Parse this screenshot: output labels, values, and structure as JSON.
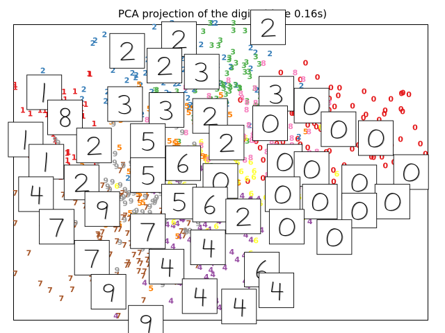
{
  "chart_data": {
    "type": "scatter",
    "title": "PCA projection of the digits (time 0.16s)",
    "xlabel": "",
    "ylabel": "",
    "xlim": [
      -1,
      1
    ],
    "ylim": [
      -1,
      1
    ],
    "show_ticks": false,
    "grid": false,
    "marker": "digit-label",
    "classes": [
      {
        "digit": "0",
        "color": "#e41a1c"
      },
      {
        "digit": "1",
        "color": "#e41a1c"
      },
      {
        "digit": "2",
        "color": "#377eb8"
      },
      {
        "digit": "3",
        "color": "#4daf4a"
      },
      {
        "digit": "4",
        "color": "#984ea3"
      },
      {
        "digit": "5",
        "color": "#ff7f00"
      },
      {
        "digit": "6",
        "color": "#ffff33"
      },
      {
        "digit": "7",
        "color": "#a65628"
      },
      {
        "digit": "8",
        "color": "#f781bf"
      },
      {
        "digit": "9",
        "color": "#999999"
      }
    ],
    "clusters": [
      {
        "digit": "0",
        "cx": 0.55,
        "cy": 0.22,
        "sx": 0.22,
        "sy": 0.2,
        "n": 120
      },
      {
        "digit": "1",
        "cx": -0.78,
        "cy": 0.32,
        "sx": 0.1,
        "sy": 0.22,
        "n": 70
      },
      {
        "digit": "2",
        "cx": -0.22,
        "cy": 0.62,
        "sx": 0.22,
        "sy": 0.2,
        "n": 90
      },
      {
        "digit": "3",
        "cx": 0.02,
        "cy": 0.55,
        "sx": 0.16,
        "sy": 0.2,
        "n": 90
      },
      {
        "digit": "4",
        "cx": -0.05,
        "cy": -0.52,
        "sx": 0.2,
        "sy": 0.25,
        "n": 90
      },
      {
        "digit": "5",
        "cx": -0.22,
        "cy": 0.08,
        "sx": 0.2,
        "sy": 0.22,
        "n": 90
      },
      {
        "digit": "6",
        "cx": 0.0,
        "cy": -0.12,
        "sx": 0.24,
        "sy": 0.2,
        "n": 100
      },
      {
        "digit": "7",
        "cx": -0.45,
        "cy": -0.42,
        "sx": 0.22,
        "sy": 0.24,
        "n": 100
      },
      {
        "digit": "8",
        "cx": 0.08,
        "cy": 0.25,
        "sx": 0.2,
        "sy": 0.2,
        "n": 90
      },
      {
        "digit": "9",
        "cx": -0.38,
        "cy": -0.15,
        "sx": 0.2,
        "sy": 0.24,
        "n": 100
      }
    ],
    "thumbnails": [
      {
        "digit": "2",
        "x": 0.23,
        "y": 0.98
      },
      {
        "digit": "2",
        "x": -0.2,
        "y": 0.9
      },
      {
        "digit": "2",
        "x": -0.45,
        "y": 0.82
      },
      {
        "digit": "2",
        "x": -0.27,
        "y": 0.72
      },
      {
        "digit": "3",
        "x": -0.09,
        "y": 0.68
      },
      {
        "digit": "3",
        "x": 0.27,
        "y": 0.53
      },
      {
        "digit": "1",
        "x": -0.85,
        "y": 0.54
      },
      {
        "digit": "3",
        "x": -0.46,
        "y": 0.46
      },
      {
        "digit": "3",
        "x": -0.26,
        "y": 0.42
      },
      {
        "digit": "2",
        "x": -0.05,
        "y": 0.38
      },
      {
        "digit": "0",
        "x": 0.44,
        "y": 0.45
      },
      {
        "digit": "8",
        "x": -0.75,
        "y": 0.37
      },
      {
        "digit": "0",
        "x": 0.24,
        "y": 0.33
      },
      {
        "digit": "1",
        "x": -0.94,
        "y": 0.22
      },
      {
        "digit": "0",
        "x": 0.57,
        "y": 0.29
      },
      {
        "digit": "0",
        "x": 0.75,
        "y": 0.23
      },
      {
        "digit": "2",
        "x": -0.61,
        "y": 0.18
      },
      {
        "digit": "5",
        "x": -0.35,
        "y": 0.21
      },
      {
        "digit": "2",
        "x": 0.03,
        "y": 0.2
      },
      {
        "digit": "1",
        "x": -0.84,
        "y": 0.07
      },
      {
        "digit": "6",
        "x": -0.18,
        "y": 0.06
      },
      {
        "digit": "0",
        "x": 0.31,
        "y": 0.07
      },
      {
        "digit": "0",
        "x": 0.44,
        "y": 0.02
      },
      {
        "digit": "0",
        "x": 0.92,
        "y": 0.0
      },
      {
        "digit": "5",
        "x": -0.35,
        "y": -0.02
      },
      {
        "digit": "0",
        "x": 0.0,
        "y": -0.06
      },
      {
        "digit": "2",
        "x": -0.67,
        "y": -0.07
      },
      {
        "digit": "0",
        "x": 0.67,
        "y": -0.07
      },
      {
        "digit": "4",
        "x": -0.89,
        "y": -0.15
      },
      {
        "digit": "5",
        "x": -0.2,
        "y": -0.2
      },
      {
        "digit": "0",
        "x": 0.3,
        "y": -0.15
      },
      {
        "digit": "6",
        "x": -0.05,
        "y": -0.22
      },
      {
        "digit": "0",
        "x": 0.48,
        "y": -0.2
      },
      {
        "digit": "0",
        "x": 0.83,
        "y": -0.2
      },
      {
        "digit": "9",
        "x": -0.57,
        "y": -0.25
      },
      {
        "digit": "0",
        "x": 0.67,
        "y": -0.26
      },
      {
        "digit": "2",
        "x": 0.11,
        "y": -0.3
      },
      {
        "digit": "7",
        "x": -0.79,
        "y": -0.37
      },
      {
        "digit": "7",
        "x": -0.35,
        "y": -0.4
      },
      {
        "digit": "0",
        "x": 0.32,
        "y": -0.37
      },
      {
        "digit": "0",
        "x": 0.55,
        "y": -0.44
      },
      {
        "digit": "4",
        "x": -0.06,
        "y": -0.51
      },
      {
        "digit": "7",
        "x": -0.62,
        "y": -0.58
      },
      {
        "digit": "4",
        "x": -0.26,
        "y": -0.64
      },
      {
        "digit": "6",
        "x": 0.2,
        "y": -0.66
      },
      {
        "digit": "9",
        "x": -0.54,
        "y": -0.81
      },
      {
        "digit": "4",
        "x": -0.1,
        "y": -0.84
      },
      {
        "digit": "4",
        "x": 0.27,
        "y": -0.8
      },
      {
        "digit": "4",
        "x": 0.09,
        "y": -0.91
      },
      {
        "digit": "9",
        "x": -0.36,
        "y": -1.02
      }
    ]
  }
}
